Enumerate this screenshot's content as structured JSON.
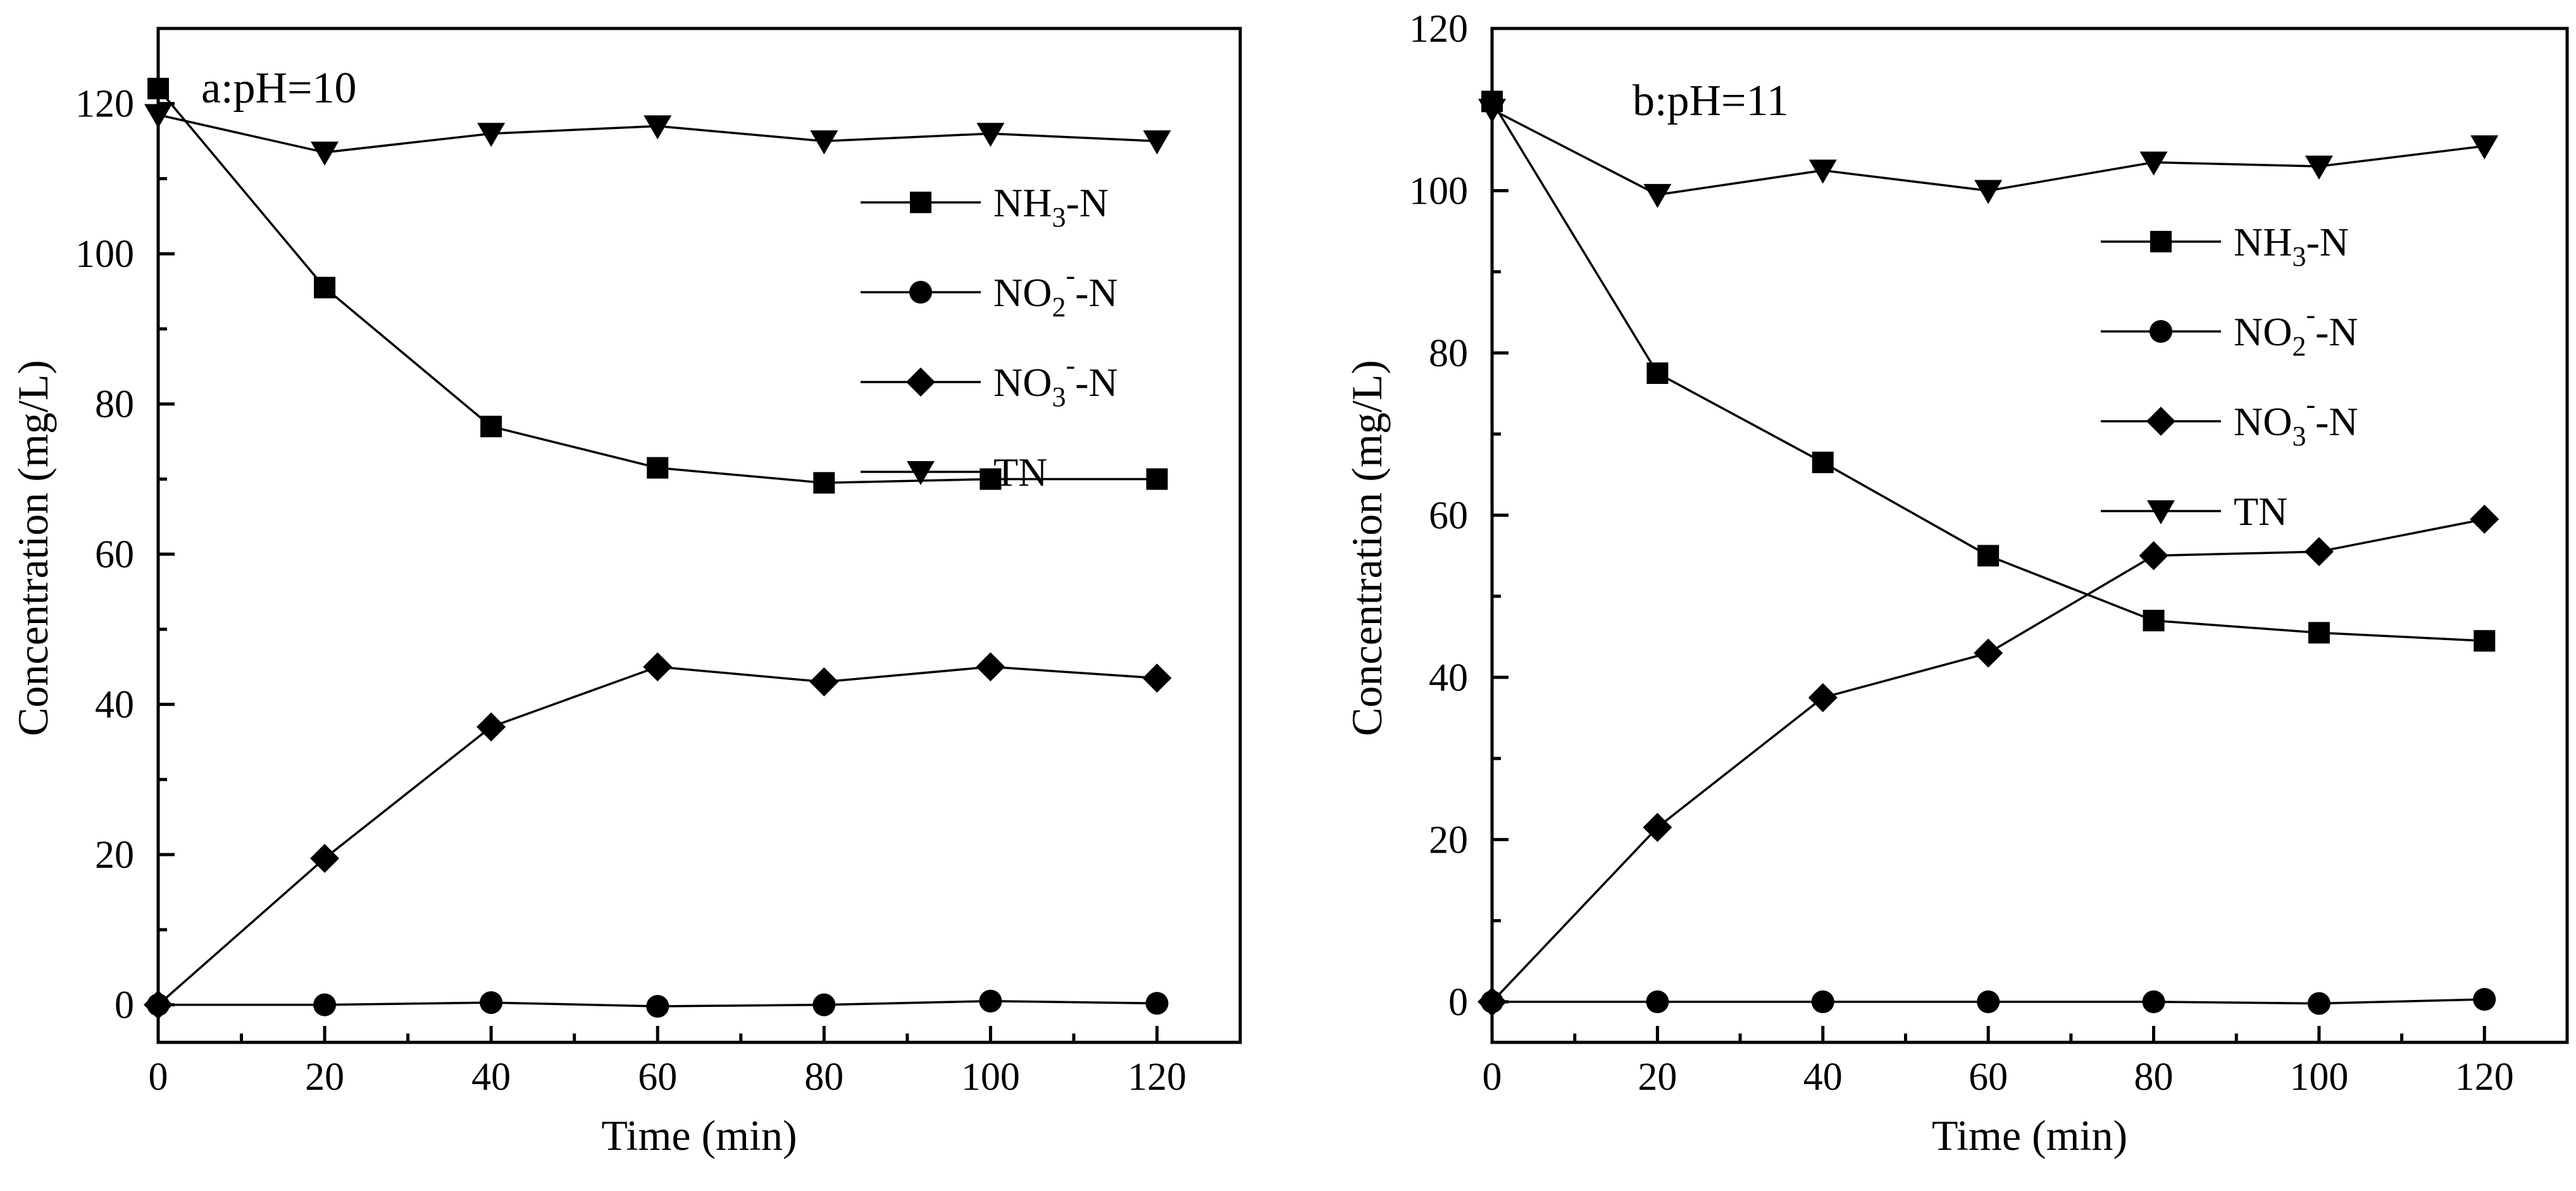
{
  "chart_data": [
    {
      "type": "line",
      "title": "a:pH=10",
      "xlabel": "Time (min)",
      "ylabel": "Concentration (mg/L)",
      "xlim": [
        0,
        130
      ],
      "ylim": [
        -5,
        130
      ],
      "xticks": [
        0,
        20,
        40,
        60,
        80,
        100,
        120
      ],
      "yticks": [
        0,
        20,
        40,
        60,
        80,
        100,
        120
      ],
      "x": [
        0,
        20,
        40,
        60,
        80,
        100,
        120
      ],
      "legend_position": "right",
      "series": [
        {
          "name": "NH3-N",
          "label_main": "NH",
          "label_sub": "3",
          "label_sup": "",
          "label_tail": "-N",
          "marker": "square",
          "values": [
            122,
            95.5,
            77,
            71.5,
            69.5,
            70,
            70
          ]
        },
        {
          "name": "NO2--N",
          "label_main": "NO",
          "label_sub": "2",
          "label_sup": "-",
          "label_tail": "-N",
          "marker": "circle",
          "values": [
            0,
            0,
            0.3,
            -0.2,
            0,
            0.5,
            0.2
          ]
        },
        {
          "name": "NO3--N",
          "label_main": "NO",
          "label_sub": "3",
          "label_sup": "-",
          "label_tail": "-N",
          "marker": "diamond",
          "values": [
            0,
            19.5,
            37,
            45,
            43,
            45,
            43.5
          ]
        },
        {
          "name": "TN",
          "label_main": "TN",
          "label_sub": "",
          "label_sup": "",
          "label_tail": "",
          "marker": "triangle-down",
          "values": [
            118.5,
            113.5,
            116,
            117,
            115,
            116,
            115
          ]
        }
      ]
    },
    {
      "type": "line",
      "title": "b:pH=11",
      "xlabel": "Time (min)",
      "ylabel": "Concentration (mg/L)",
      "xlim": [
        0,
        130
      ],
      "ylim": [
        -5,
        120
      ],
      "xticks": [
        0,
        20,
        40,
        60,
        80,
        100,
        120
      ],
      "yticks": [
        0,
        20,
        40,
        60,
        80,
        100,
        120
      ],
      "x": [
        0,
        20,
        40,
        60,
        80,
        100,
        120
      ],
      "legend_position": "right",
      "series": [
        {
          "name": "NH3-N",
          "label_main": "NH",
          "label_sub": "3",
          "label_sup": "",
          "label_tail": "-N",
          "marker": "square",
          "values": [
            111,
            77.5,
            66.5,
            55,
            47,
            45.5,
            44.5
          ]
        },
        {
          "name": "NO2--N",
          "label_main": "NO",
          "label_sub": "2",
          "label_sup": "-",
          "label_tail": "-N",
          "marker": "circle",
          "values": [
            0,
            0,
            0,
            0,
            0,
            -0.2,
            0.3
          ]
        },
        {
          "name": "NO3--N",
          "label_main": "NO",
          "label_sub": "3",
          "label_sup": "-",
          "label_tail": "-N",
          "marker": "diamond",
          "values": [
            0,
            21.5,
            37.5,
            43,
            55,
            55.5,
            59.5
          ]
        },
        {
          "name": "TN",
          "label_main": "TN",
          "label_sub": "",
          "label_sup": "",
          "label_tail": "",
          "marker": "triangle-down",
          "values": [
            110,
            99.5,
            102.5,
            100,
            103.5,
            103,
            105.5
          ]
        }
      ]
    }
  ]
}
